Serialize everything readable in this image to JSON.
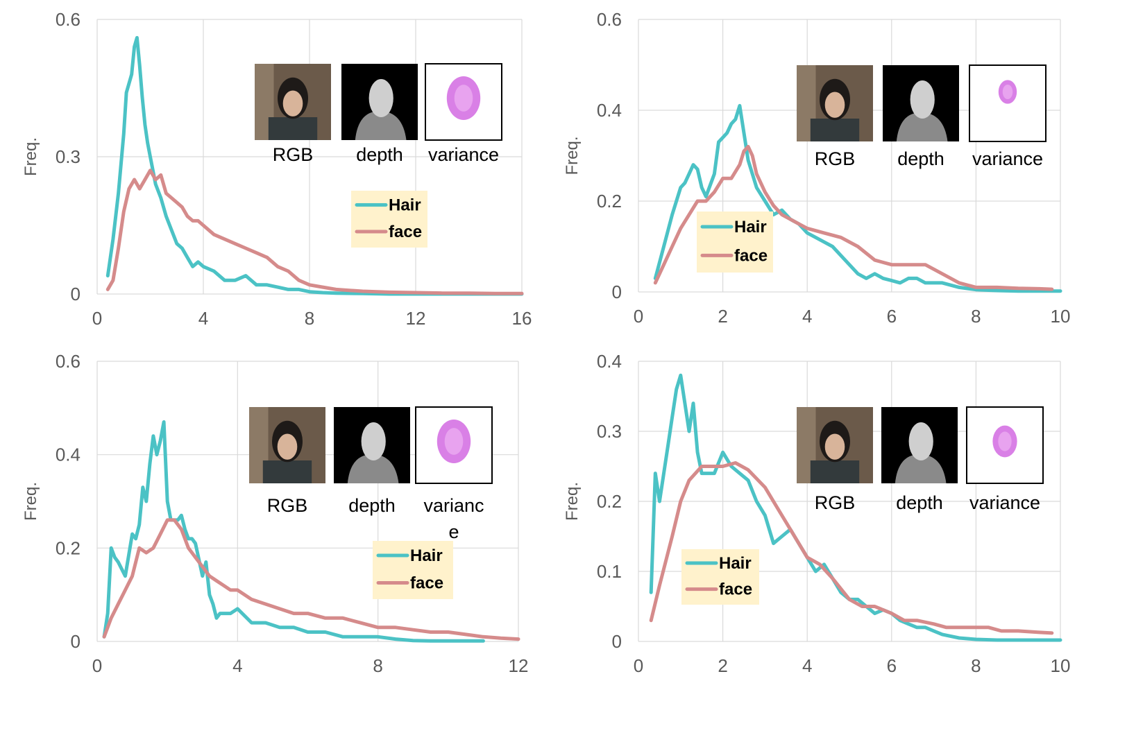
{
  "colors": {
    "hair": "#4bc2c5",
    "face": "#d58b8b",
    "legend_bg": "#fff2cc",
    "grid": "#d9d9d9",
    "axis_text": "#595959",
    "variance_purple": "#cc55dd"
  },
  "chart_data": [
    {
      "type": "line",
      "ylabel": "Freq.",
      "xlim": [
        0,
        16
      ],
      "ylim": [
        0,
        0.6
      ],
      "xticks": [
        "0",
        "4",
        "8",
        "12",
        "16"
      ],
      "yticks": [
        "0",
        "0.3",
        "0.6"
      ],
      "legend": [
        "Hair",
        "face"
      ],
      "thumbnails": [
        "RGB",
        "depth",
        "variance"
      ],
      "series": [
        {
          "name": "Hair",
          "x": [
            0.4,
            0.6,
            0.8,
            1.0,
            1.1,
            1.2,
            1.3,
            1.4,
            1.5,
            1.6,
            1.7,
            1.8,
            1.9,
            2.0,
            2.2,
            2.4,
            2.6,
            2.8,
            3.0,
            3.2,
            3.4,
            3.6,
            3.8,
            4.0,
            4.4,
            4.8,
            5.2,
            5.6,
            6.0,
            6.4,
            6.8,
            7.2,
            7.6,
            8.0,
            8.5,
            9.0,
            10,
            11,
            12,
            13,
            14,
            15,
            16
          ],
          "values": [
            0.04,
            0.12,
            0.22,
            0.35,
            0.44,
            0.46,
            0.48,
            0.54,
            0.56,
            0.5,
            0.43,
            0.37,
            0.33,
            0.3,
            0.24,
            0.21,
            0.17,
            0.14,
            0.11,
            0.1,
            0.08,
            0.06,
            0.07,
            0.06,
            0.05,
            0.03,
            0.03,
            0.04,
            0.02,
            0.02,
            0.015,
            0.01,
            0.01,
            0.005,
            0.003,
            0.002,
            0.001,
            0,
            0,
            0,
            0,
            0,
            0
          ]
        },
        {
          "name": "face",
          "x": [
            0.4,
            0.6,
            0.8,
            1.0,
            1.2,
            1.4,
            1.6,
            1.8,
            2.0,
            2.2,
            2.4,
            2.6,
            2.8,
            3.0,
            3.2,
            3.4,
            3.6,
            3.8,
            4.0,
            4.4,
            4.8,
            5.2,
            5.6,
            6.0,
            6.4,
            6.8,
            7.2,
            7.6,
            8.0,
            8.5,
            9.0,
            9.5,
            10,
            11,
            12,
            13,
            14,
            15,
            16
          ],
          "values": [
            0.01,
            0.03,
            0.1,
            0.18,
            0.23,
            0.25,
            0.23,
            0.25,
            0.27,
            0.25,
            0.26,
            0.22,
            0.21,
            0.2,
            0.19,
            0.17,
            0.16,
            0.16,
            0.15,
            0.13,
            0.12,
            0.11,
            0.1,
            0.09,
            0.08,
            0.06,
            0.05,
            0.03,
            0.02,
            0.015,
            0.01,
            0.008,
            0.006,
            0.004,
            0.003,
            0.002,
            0.002,
            0.001,
            0.001
          ]
        }
      ]
    },
    {
      "type": "line",
      "ylabel": "Freq.",
      "xlim": [
        0,
        10
      ],
      "ylim": [
        0,
        0.6
      ],
      "xticks": [
        "0",
        "2",
        "4",
        "6",
        "8",
        "10"
      ],
      "yticks": [
        "0",
        "0.2",
        "0.4",
        "0.6"
      ],
      "legend": [
        "Hair",
        "face"
      ],
      "thumbnails": [
        "RGB",
        "depth",
        "variance"
      ],
      "series": [
        {
          "name": "Hair",
          "x": [
            0.4,
            0.6,
            0.8,
            1.0,
            1.1,
            1.2,
            1.3,
            1.4,
            1.5,
            1.6,
            1.8,
            1.9,
            2.0,
            2.1,
            2.2,
            2.3,
            2.4,
            2.5,
            2.6,
            2.8,
            3.0,
            3.2,
            3.4,
            3.6,
            3.8,
            4.0,
            4.2,
            4.4,
            4.6,
            4.8,
            5.0,
            5.2,
            5.4,
            5.6,
            5.8,
            6.0,
            6.2,
            6.4,
            6.6,
            6.8,
            7.0,
            7.2,
            7.6,
            8.0,
            8.5,
            9.0,
            9.5,
            10.0
          ],
          "values": [
            0.03,
            0.1,
            0.17,
            0.23,
            0.24,
            0.26,
            0.28,
            0.27,
            0.23,
            0.21,
            0.26,
            0.33,
            0.34,
            0.35,
            0.37,
            0.38,
            0.41,
            0.35,
            0.29,
            0.23,
            0.2,
            0.17,
            0.18,
            0.16,
            0.15,
            0.13,
            0.12,
            0.11,
            0.1,
            0.08,
            0.06,
            0.04,
            0.03,
            0.04,
            0.03,
            0.025,
            0.02,
            0.03,
            0.03,
            0.02,
            0.02,
            0.02,
            0.01,
            0.005,
            0.003,
            0.002,
            0.002,
            0.002
          ]
        },
        {
          "name": "face",
          "x": [
            0.4,
            0.6,
            0.8,
            1.0,
            1.2,
            1.4,
            1.6,
            1.8,
            2.0,
            2.2,
            2.4,
            2.5,
            2.6,
            2.7,
            2.8,
            3.0,
            3.2,
            3.4,
            3.6,
            3.8,
            4.0,
            4.4,
            4.8,
            5.2,
            5.6,
            6.0,
            6.4,
            6.8,
            7.2,
            7.6,
            8.0,
            8.5,
            9.0,
            9.5,
            9.8
          ],
          "values": [
            0.02,
            0.06,
            0.1,
            0.14,
            0.17,
            0.2,
            0.2,
            0.22,
            0.25,
            0.25,
            0.28,
            0.31,
            0.32,
            0.3,
            0.26,
            0.22,
            0.19,
            0.17,
            0.16,
            0.15,
            0.14,
            0.13,
            0.12,
            0.1,
            0.07,
            0.06,
            0.06,
            0.06,
            0.04,
            0.02,
            0.01,
            0.01,
            0.008,
            0.007,
            0.006
          ]
        }
      ]
    },
    {
      "type": "line",
      "ylabel": "Freq.",
      "xlim": [
        0,
        12
      ],
      "ylim": [
        0,
        0.6
      ],
      "xticks": [
        "0",
        "4",
        "8",
        "12"
      ],
      "yticks": [
        "0",
        "0.2",
        "0.4",
        "0.6"
      ],
      "legend": [
        "Hair",
        "face"
      ],
      "thumbnails": [
        "RGB",
        "depth",
        "varianc",
        "e"
      ],
      "series": [
        {
          "name": "Hair",
          "x": [
            0.2,
            0.3,
            0.4,
            0.5,
            0.6,
            0.8,
            1.0,
            1.1,
            1.2,
            1.3,
            1.4,
            1.5,
            1.6,
            1.7,
            1.8,
            1.9,
            2.0,
            2.1,
            2.2,
            2.3,
            2.4,
            2.5,
            2.6,
            2.7,
            2.8,
            3.0,
            3.1,
            3.2,
            3.3,
            3.4,
            3.5,
            3.6,
            3.8,
            4.0,
            4.4,
            4.8,
            5.2,
            5.6,
            6.0,
            6.5,
            7.0,
            7.5,
            8.0,
            8.5,
            9.0,
            9.5,
            10,
            11
          ],
          "values": [
            0.01,
            0.06,
            0.2,
            0.18,
            0.17,
            0.14,
            0.23,
            0.22,
            0.25,
            0.33,
            0.3,
            0.38,
            0.44,
            0.4,
            0.43,
            0.47,
            0.3,
            0.26,
            0.26,
            0.26,
            0.27,
            0.24,
            0.22,
            0.22,
            0.21,
            0.14,
            0.17,
            0.1,
            0.08,
            0.05,
            0.06,
            0.06,
            0.06,
            0.07,
            0.04,
            0.04,
            0.03,
            0.03,
            0.02,
            0.02,
            0.01,
            0.01,
            0.01,
            0.005,
            0.002,
            0.001,
            0.001,
            0.001
          ]
        },
        {
          "name": "face",
          "x": [
            0.2,
            0.4,
            0.6,
            0.8,
            1.0,
            1.2,
            1.4,
            1.6,
            1.8,
            2.0,
            2.2,
            2.4,
            2.6,
            2.8,
            3.0,
            3.2,
            3.4,
            3.6,
            3.8,
            4.0,
            4.4,
            4.8,
            5.2,
            5.6,
            6.0,
            6.5,
            7.0,
            7.5,
            8.0,
            8.5,
            9.0,
            9.5,
            10,
            10.5,
            11,
            11.5,
            12
          ],
          "values": [
            0.01,
            0.05,
            0.08,
            0.11,
            0.14,
            0.2,
            0.19,
            0.2,
            0.23,
            0.26,
            0.26,
            0.24,
            0.2,
            0.18,
            0.16,
            0.14,
            0.13,
            0.12,
            0.11,
            0.11,
            0.09,
            0.08,
            0.07,
            0.06,
            0.06,
            0.05,
            0.05,
            0.04,
            0.03,
            0.03,
            0.025,
            0.02,
            0.02,
            0.015,
            0.01,
            0.007,
            0.005
          ]
        }
      ]
    },
    {
      "type": "line",
      "ylabel": "Freq.",
      "xlim": [
        0,
        10
      ],
      "ylim": [
        0,
        0.4
      ],
      "xticks": [
        "0",
        "2",
        "4",
        "6",
        "8",
        "10"
      ],
      "yticks": [
        "0",
        "0.1",
        "0.2",
        "0.3",
        "0.4"
      ],
      "legend": [
        "Hair",
        "face"
      ],
      "thumbnails": [
        "RGB",
        "depth",
        "variance"
      ],
      "series": [
        {
          "name": "Hair",
          "x": [
            0.3,
            0.4,
            0.5,
            0.6,
            0.7,
            0.8,
            0.9,
            1.0,
            1.1,
            1.2,
            1.3,
            1.4,
            1.5,
            1.6,
            1.8,
            2.0,
            2.2,
            2.4,
            2.6,
            2.8,
            3.0,
            3.2,
            3.4,
            3.6,
            3.8,
            4.0,
            4.2,
            4.4,
            4.6,
            4.8,
            5.0,
            5.2,
            5.4,
            5.6,
            5.8,
            6.0,
            6.2,
            6.4,
            6.6,
            6.8,
            7.0,
            7.2,
            7.6,
            8.0,
            8.5,
            9.0,
            9.5,
            10.0
          ],
          "values": [
            0.07,
            0.24,
            0.2,
            0.24,
            0.28,
            0.32,
            0.36,
            0.38,
            0.34,
            0.3,
            0.34,
            0.27,
            0.24,
            0.24,
            0.24,
            0.27,
            0.25,
            0.24,
            0.23,
            0.2,
            0.18,
            0.14,
            0.15,
            0.16,
            0.14,
            0.12,
            0.1,
            0.11,
            0.09,
            0.07,
            0.06,
            0.06,
            0.05,
            0.04,
            0.045,
            0.04,
            0.03,
            0.025,
            0.02,
            0.02,
            0.015,
            0.01,
            0.005,
            0.003,
            0.002,
            0.002,
            0.002,
            0.002
          ]
        },
        {
          "name": "face",
          "x": [
            0.3,
            0.5,
            0.8,
            1.0,
            1.2,
            1.5,
            1.8,
            2.0,
            2.3,
            2.6,
            3.0,
            3.3,
            3.6,
            4.0,
            4.3,
            4.6,
            5.0,
            5.3,
            5.6,
            6.0,
            6.3,
            6.6,
            7.0,
            7.3,
            7.6,
            8.0,
            8.3,
            8.6,
            9.0,
            9.5,
            9.8
          ],
          "values": [
            0.03,
            0.08,
            0.15,
            0.2,
            0.23,
            0.25,
            0.25,
            0.25,
            0.255,
            0.245,
            0.22,
            0.19,
            0.16,
            0.12,
            0.11,
            0.09,
            0.06,
            0.05,
            0.05,
            0.04,
            0.03,
            0.03,
            0.025,
            0.02,
            0.02,
            0.02,
            0.02,
            0.015,
            0.015,
            0.013,
            0.012
          ]
        }
      ]
    }
  ]
}
